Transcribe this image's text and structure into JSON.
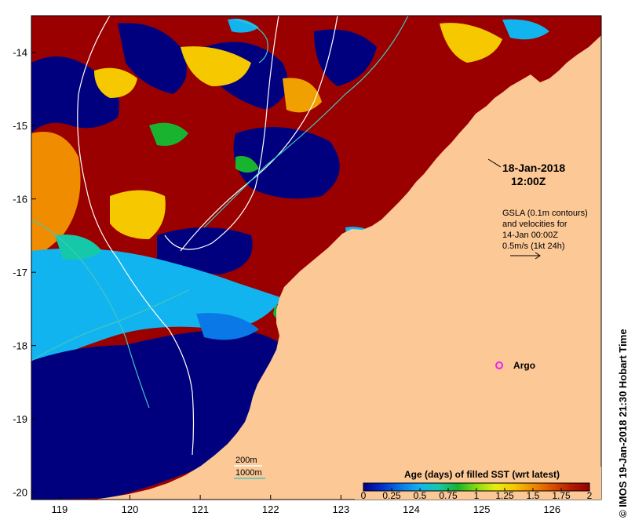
{
  "map": {
    "lon_ticks": [
      "119",
      "120",
      "121",
      "122",
      "123",
      "124",
      "125",
      "126"
    ],
    "lat_ticks": [
      "-14",
      "-15",
      "-16",
      "-17",
      "-18",
      "-19",
      "-20"
    ],
    "lon_range": [
      118.6,
      126.7
    ],
    "lat_range": [
      -20.1,
      -13.5
    ]
  },
  "timestamp": {
    "date": "18-Jan-2018",
    "time": "12:00Z"
  },
  "gsla_note": {
    "line1": "GSLA (0.1m contours)",
    "line2": "and velocities for",
    "line3": "14-Jan 00:00Z",
    "line4": "0.5m/s (1kt 24h)"
  },
  "argo": {
    "label": "Argo",
    "color": "#ee22ee",
    "lon": 125.25,
    "lat": -18.27
  },
  "isobath_legend": {
    "depth1": "200m",
    "depth2": "1000m",
    "color1": "#ffffff",
    "color2": "#40c8c0"
  },
  "colorbar": {
    "title": "Age (days) of filled SST (wrt latest)",
    "ticks": [
      "0",
      "0.25",
      "0.5",
      "0.75",
      "1",
      "1.25",
      "1.5",
      "1.75",
      "2"
    ],
    "colors": [
      "#00008a",
      "#0030c8",
      "#0a78e6",
      "#12b4f0",
      "#14c8a8",
      "#18b430",
      "#86dc10",
      "#e6ee10",
      "#f5c800",
      "#f08c00",
      "#dc5000",
      "#b41e00",
      "#960000"
    ]
  },
  "credit": "© IMOS 19-Jan-2018 21:30 Hobart Time",
  "colors": {
    "land": "#fcc896",
    "sea_old": "#9b0000",
    "sea_recent": "#00007e"
  }
}
